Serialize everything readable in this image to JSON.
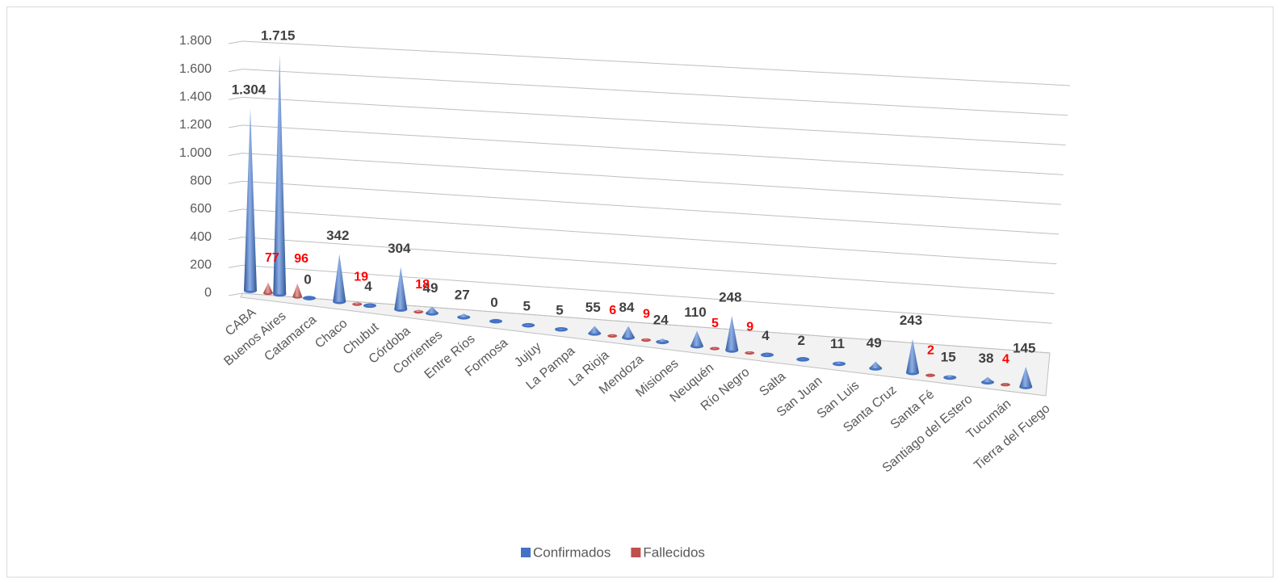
{
  "chart_data": {
    "type": "cone3d",
    "categories": [
      "CABA",
      "Buenos Aires",
      "Catamarca",
      "Chaco",
      "Chubut",
      "Córdoba",
      "Corrientes",
      "Entre Ríos",
      "Formosa",
      "Jujuy",
      "La Pampa",
      "La Rioja",
      "Mendoza",
      "Misiones",
      "Neuquén",
      "Río Negro",
      "Salta",
      "San Juan",
      "San Luis",
      "Santa Cruz",
      "Santa Fé",
      "Santiago del Estero",
      "Tucumán",
      "Tierra del Fuego"
    ],
    "series": [
      {
        "name": "Confirmados",
        "color": "#4472c4",
        "values": [
          1304,
          1715,
          0,
          342,
          4,
          304,
          49,
          27,
          0,
          5,
          5,
          55,
          84,
          24,
          110,
          248,
          4,
          2,
          11,
          49,
          243,
          15,
          38,
          145
        ],
        "value_labels": [
          "1.304",
          "1.715",
          "0",
          "342",
          "4",
          "304",
          "49",
          "27",
          "0",
          "5",
          "5",
          "55",
          "84",
          "24",
          "110",
          "248",
          "4",
          "2",
          "11",
          "49",
          "243",
          "15",
          "38",
          "145"
        ]
      },
      {
        "name": "Fallecidos",
        "color": "#c0504d",
        "values": [
          77,
          96,
          null,
          19,
          null,
          18,
          null,
          null,
          null,
          null,
          null,
          6,
          9,
          null,
          5,
          9,
          null,
          null,
          null,
          null,
          2,
          null,
          4,
          null
        ]
      }
    ],
    "ylim": [
      0,
      1800
    ],
    "yticks": [
      0,
      200,
      400,
      600,
      800,
      {
        "value": 1000,
        "label": "1.000"
      },
      {
        "value": 1200,
        "label": "1.200"
      },
      {
        "value": 1400,
        "label": "1.400"
      },
      {
        "value": 1600,
        "label": "1.600"
      },
      {
        "value": 1800,
        "label": "1.800"
      }
    ],
    "grid": true,
    "legend": "bottom"
  }
}
